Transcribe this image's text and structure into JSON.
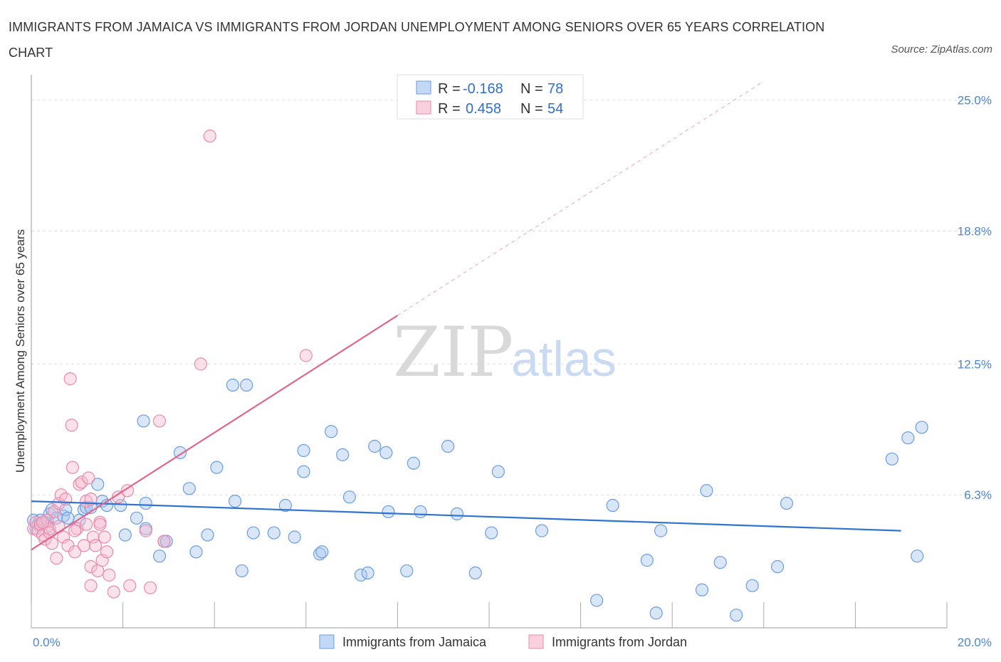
{
  "title": "IMMIGRANTS FROM JAMAICA VS IMMIGRANTS FROM JORDAN UNEMPLOYMENT AMONG SENIORS OVER 65 YEARS CORRELATION CHART",
  "source": "Source: ZipAtlas.com",
  "watermark": {
    "zip": "ZIP",
    "atlas": "atlas"
  },
  "colors": {
    "jamaica_fill": "#a9c8f0",
    "jamaica_stroke": "#6b9de0",
    "jamaica_line": "#2f73d1",
    "jordan_fill": "#f7bccf",
    "jordan_stroke": "#e98aab",
    "jordan_line": "#e06690",
    "grid": "#dddddd",
    "axis_tick_text": "#4a86d6"
  },
  "legend": {
    "r_label": "R =",
    "n_label": "N =",
    "rows": [
      {
        "r": "-0.168",
        "n": "78"
      },
      {
        "r": "0.458",
        "n": "54"
      }
    ]
  },
  "chart_data": {
    "type": "scatter",
    "title": "IMMIGRANTS FROM JAMAICA VS IMMIGRANTS FROM JORDAN UNEMPLOYMENT AMONG SENIORS OVER 65 YEARS CORRELATION CHART",
    "xlabel": "",
    "ylabel": "Unemployment Among Seniors over 65 years",
    "xlim": [
      0,
      20
    ],
    "ylim": [
      0,
      25.8
    ],
    "x_tick_labels": [
      "0.0%",
      "20.0%"
    ],
    "y_tick_labels": [
      "6.3%",
      "12.5%",
      "18.8%",
      "25.0%"
    ],
    "y_ticks": [
      6.3,
      12.5,
      18.8,
      25.0
    ],
    "grid": "horizontal dashed",
    "legend_position": "top-center",
    "series": [
      {
        "name": "Immigrants from Jamaica",
        "r": -0.168,
        "n": 78,
        "trend": {
          "x": [
            0,
            19.0
          ],
          "y": [
            6.0,
            4.6
          ]
        },
        "points": [
          [
            0.05,
            5.1
          ],
          [
            0.1,
            4.7
          ],
          [
            0.15,
            4.9
          ],
          [
            0.2,
            5.1
          ],
          [
            0.3,
            5.0
          ],
          [
            0.35,
            4.8
          ],
          [
            0.4,
            5.4
          ],
          [
            0.45,
            5.6
          ],
          [
            0.55,
            5.2
          ],
          [
            0.7,
            5.3
          ],
          [
            0.75,
            5.6
          ],
          [
            1.05,
            5.1
          ],
          [
            1.15,
            5.6
          ],
          [
            1.2,
            5.7
          ],
          [
            1.3,
            5.7
          ],
          [
            1.45,
            6.8
          ],
          [
            1.55,
            6.0
          ],
          [
            1.65,
            5.8
          ],
          [
            2.45,
            9.8
          ],
          [
            2.3,
            5.2
          ],
          [
            2.5,
            4.7
          ],
          [
            2.5,
            5.9
          ],
          [
            2.8,
            3.4
          ],
          [
            2.9,
            4.1
          ],
          [
            3.25,
            8.3
          ],
          [
            3.45,
            6.6
          ],
          [
            3.6,
            3.6
          ],
          [
            3.85,
            4.4
          ],
          [
            4.4,
            11.5
          ],
          [
            4.7,
            11.5
          ],
          [
            4.05,
            7.6
          ],
          [
            4.45,
            6.0
          ],
          [
            4.6,
            2.7
          ],
          [
            4.85,
            4.5
          ],
          [
            5.3,
            4.5
          ],
          [
            5.55,
            5.8
          ],
          [
            5.75,
            4.3
          ],
          [
            5.95,
            7.4
          ],
          [
            5.95,
            8.4
          ],
          [
            6.3,
            3.5
          ],
          [
            6.35,
            3.6
          ],
          [
            6.55,
            9.3
          ],
          [
            6.8,
            8.2
          ],
          [
            6.95,
            6.2
          ],
          [
            7.2,
            2.5
          ],
          [
            7.35,
            2.6
          ],
          [
            7.5,
            8.6
          ],
          [
            7.75,
            8.3
          ],
          [
            7.8,
            5.5
          ],
          [
            8.2,
            2.7
          ],
          [
            8.35,
            7.8
          ],
          [
            8.5,
            5.5
          ],
          [
            9.1,
            8.6
          ],
          [
            9.3,
            5.4
          ],
          [
            9.7,
            2.6
          ],
          [
            10.05,
            4.5
          ],
          [
            10.2,
            7.4
          ],
          [
            11.15,
            4.6
          ],
          [
            12.35,
            1.3
          ],
          [
            12.7,
            5.8
          ],
          [
            13.45,
            3.2
          ],
          [
            13.65,
            0.7
          ],
          [
            13.75,
            4.6
          ],
          [
            14.65,
            1.8
          ],
          [
            14.75,
            6.5
          ],
          [
            15.05,
            3.1
          ],
          [
            15.4,
            0.6
          ],
          [
            15.75,
            2.0
          ],
          [
            16.3,
            2.9
          ],
          [
            16.5,
            5.9
          ],
          [
            18.8,
            8.0
          ],
          [
            19.15,
            9.0
          ],
          [
            19.45,
            9.5
          ],
          [
            19.35,
            3.4
          ],
          [
            0.8,
            5.2
          ],
          [
            1.95,
            5.8
          ],
          [
            2.05,
            4.4
          ],
          [
            2.95,
            4.1
          ]
        ]
      },
      {
        "name": "Immigrants from Jordan",
        "r": 0.458,
        "n": 54,
        "trend": {
          "x": [
            0,
            8.0
          ],
          "y": [
            3.7,
            14.8
          ]
        },
        "points": [
          [
            0.05,
            4.7
          ],
          [
            0.1,
            5.0
          ],
          [
            0.15,
            4.6
          ],
          [
            0.2,
            4.9
          ],
          [
            0.25,
            4.4
          ],
          [
            0.3,
            4.2
          ],
          [
            0.35,
            5.1
          ],
          [
            0.4,
            4.5
          ],
          [
            0.45,
            4.0
          ],
          [
            0.5,
            5.5
          ],
          [
            0.55,
            3.3
          ],
          [
            0.6,
            5.9
          ],
          [
            0.65,
            6.3
          ],
          [
            0.7,
            4.3
          ],
          [
            0.75,
            6.1
          ],
          [
            0.8,
            3.9
          ],
          [
            0.85,
            11.8
          ],
          [
            0.88,
            9.6
          ],
          [
            0.9,
            7.6
          ],
          [
            0.95,
            3.6
          ],
          [
            1.0,
            4.7
          ],
          [
            1.05,
            6.8
          ],
          [
            1.1,
            6.9
          ],
          [
            1.15,
            3.9
          ],
          [
            1.2,
            6.0
          ],
          [
            1.25,
            7.1
          ],
          [
            1.3,
            6.1
          ],
          [
            1.3,
            2.9
          ],
          [
            1.35,
            4.3
          ],
          [
            1.4,
            3.9
          ],
          [
            1.45,
            2.7
          ],
          [
            1.5,
            5.0
          ],
          [
            1.55,
            3.2
          ],
          [
            1.6,
            4.3
          ],
          [
            1.65,
            3.6
          ],
          [
            1.7,
            2.5
          ],
          [
            1.8,
            1.7
          ],
          [
            1.9,
            6.2
          ],
          [
            2.1,
            6.5
          ],
          [
            2.15,
            2.0
          ],
          [
            2.5,
            4.6
          ],
          [
            2.6,
            1.9
          ],
          [
            2.8,
            9.8
          ],
          [
            2.9,
            4.1
          ],
          [
            3.7,
            12.5
          ],
          [
            3.9,
            23.3
          ],
          [
            6.0,
            12.9
          ],
          [
            1.3,
            2.0
          ],
          [
            0.4,
            4.7
          ],
          [
            0.6,
            4.8
          ],
          [
            1.2,
            4.9
          ],
          [
            0.95,
            4.6
          ],
          [
            1.5,
            4.9
          ],
          [
            0.25,
            5.0
          ]
        ]
      }
    ]
  },
  "bottom_legend": [
    {
      "label": "Immigrants from Jamaica"
    },
    {
      "label": "Immigrants from Jordan"
    }
  ]
}
